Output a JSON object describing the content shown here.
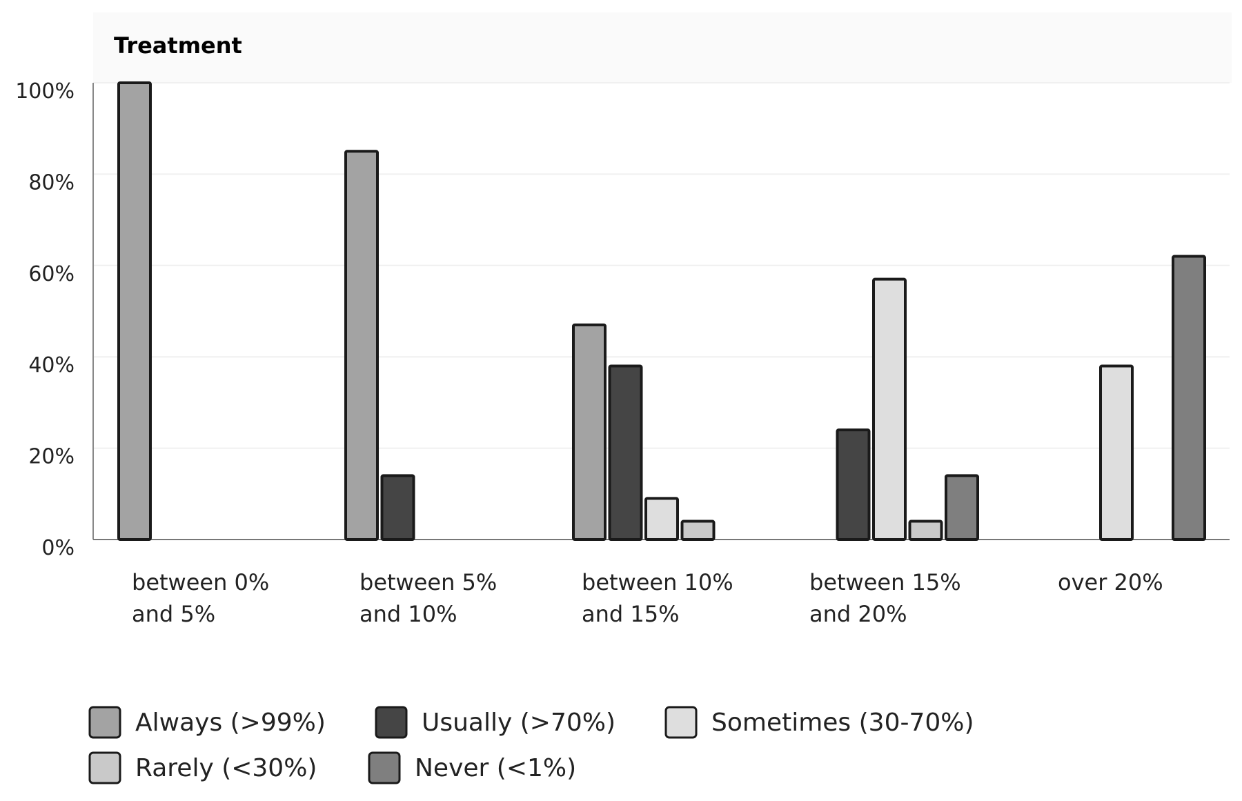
{
  "chart_data": {
    "type": "bar",
    "title": "Treatment",
    "categories": [
      [
        "between 0%",
        "and 5%"
      ],
      [
        "between 5%",
        "and 10%"
      ],
      [
        "between 10%",
        "and 15%"
      ],
      [
        "between 15%",
        "and 20%"
      ],
      [
        "over 20%"
      ]
    ],
    "series": [
      {
        "name": "Always (>99%)",
        "color": "#a3a3a3",
        "values": [
          100,
          85,
          47,
          0,
          0
        ]
      },
      {
        "name": "Usually (>70%)",
        "color": "#454545",
        "values": [
          0,
          14,
          38,
          24,
          0
        ]
      },
      {
        "name": "Sometimes (30-70%)",
        "color": "#dedede",
        "values": [
          0,
          0,
          9,
          57,
          38
        ]
      },
      {
        "name": "Rarely (<30%)",
        "color": "#c9c9c9",
        "values": [
          0,
          0,
          4,
          4,
          0
        ]
      },
      {
        "name": "Never (<1%)",
        "color": "#7f7f7f",
        "values": [
          0,
          0,
          0,
          14,
          62
        ]
      }
    ],
    "yticks": [
      "0%",
      "20%",
      "40%",
      "60%",
      "80%",
      "100%"
    ],
    "ylim": [
      0,
      100
    ],
    "grid": true,
    "legend_position": "bottom-left"
  }
}
